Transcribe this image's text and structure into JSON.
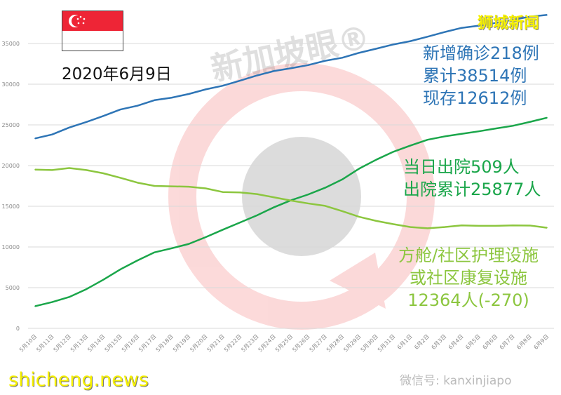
{
  "header": {
    "date": "2020年6月9日",
    "brand": "狮城新闻",
    "site_watermark": "shicheng.news",
    "wechat_watermark": "微信号: kanxinjiapo",
    "logo_watermark": "新加坡眼®"
  },
  "annotations": {
    "confirmed": [
      "新增确诊218例",
      "累计38514例",
      "现存12612例"
    ],
    "discharged": [
      "当日出院509人",
      "出院累计25877人"
    ],
    "community": [
      "方舱/社区护理设施",
      "或社区康复设施",
      "12364人(-270)"
    ]
  },
  "colors": {
    "confirmed": "#2e75b6",
    "discharged": "#1aa64a",
    "community": "#8cc63f",
    "grid": "#d9d9d9",
    "flag_red": "#ee2536"
  },
  "chart_data": {
    "type": "line",
    "title": "",
    "xlabel": "",
    "ylabel": "",
    "ylim": [
      0,
      37500
    ],
    "yticks": [
      0,
      5000,
      10000,
      15000,
      20000,
      25000,
      30000,
      35000
    ],
    "grid": true,
    "categories": [
      "5月10日",
      "5月11日",
      "5月12日",
      "5月13日",
      "5月14日",
      "5月15日",
      "5月16日",
      "5月17日",
      "5月18日",
      "5月19日",
      "5月20日",
      "5月21日",
      "5月22日",
      "5月23日",
      "5月24日",
      "5月25日",
      "5月26日",
      "5月27日",
      "5月28日",
      "5月29日",
      "5月30日",
      "5月31日",
      "6月1日",
      "6月2日",
      "6月3日",
      "6月4日",
      "6月5日",
      "6月6日",
      "6月7日",
      "6月8日",
      "6月9日"
    ],
    "series": [
      {
        "key": "confirmed",
        "values": [
          23336,
          23822,
          24671,
          25346,
          26098,
          26891,
          27356,
          28038,
          28343,
          28794,
          29364,
          29812,
          30426,
          31068,
          31616,
          31960,
          32343,
          32876,
          33249,
          33860,
          34366,
          34884,
          35292,
          35836,
          36405,
          36922,
          37183,
          37527,
          37910,
          38296,
          38514
        ]
      },
      {
        "key": "discharged",
        "values": [
          2721,
          3225,
          3851,
          4809,
          5973,
          7248,
          8342,
          9340,
          9835,
          10365,
          11207,
          12117,
          12995,
          13882,
          14876,
          15738,
          16444,
          17276,
          18294,
          19631,
          20727,
          21699,
          22466,
          23175,
          23582,
          23904,
          24209,
          24559,
          24886,
          25368,
          25877
        ]
      },
      {
        "key": "community",
        "values": [
          19500,
          19450,
          19700,
          19450,
          19050,
          18500,
          17900,
          17500,
          17450,
          17400,
          17200,
          16750,
          16700,
          16500,
          16100,
          15700,
          15350,
          15050,
          14400,
          13700,
          13200,
          12800,
          12450,
          12300,
          12450,
          12650,
          12600,
          12600,
          12650,
          12634,
          12364
        ]
      }
    ]
  }
}
